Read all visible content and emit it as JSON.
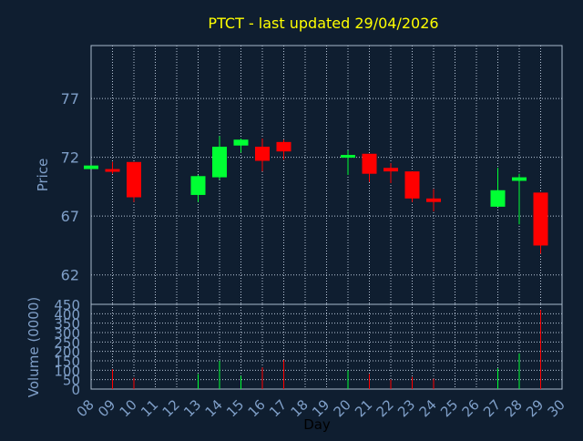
{
  "chart_data": {
    "type": "candlestick",
    "title": "PTCT - last updated 29/04/2026",
    "xlabel": "Day",
    "price_ylabel": "Price",
    "volume_ylabel": "Volume (0000)",
    "x_ticks": [
      "08",
      "09",
      "10",
      "11",
      "12",
      "13",
      "14",
      "15",
      "16",
      "17",
      "18",
      "19",
      "20",
      "21",
      "22",
      "23",
      "24",
      "25",
      "26",
      "27",
      "28",
      "29",
      "30"
    ],
    "price_ticks": [
      62,
      67,
      72,
      77
    ],
    "price_range": [
      59.5,
      81.5
    ],
    "volume_ticks": [
      0,
      50,
      100,
      150,
      200,
      250,
      300,
      350,
      400,
      450
    ],
    "volume_range": [
      0,
      450
    ],
    "grid": true,
    "colors": {
      "background": "#0f1e30",
      "title": "#ffff00",
      "axis_text": "#7f9fc8",
      "frame": "#aabbcc",
      "grid": "#b8c6d8",
      "up": "#00ff33",
      "down": "#ff0000"
    },
    "candles": [
      {
        "day": 8,
        "open": 71.0,
        "high": 71.3,
        "low": 71.0,
        "close": 71.3
      },
      {
        "day": 9,
        "open": 71.0,
        "high": 71.6,
        "low": 70.6,
        "close": 70.8
      },
      {
        "day": 10,
        "open": 71.6,
        "high": 71.6,
        "low": 68.2,
        "close": 68.6
      },
      {
        "day": 13,
        "open": 68.8,
        "high": 70.5,
        "low": 68.2,
        "close": 70.4
      },
      {
        "day": 14,
        "open": 70.3,
        "high": 73.8,
        "low": 70.1,
        "close": 72.9
      },
      {
        "day": 15,
        "open": 73.0,
        "high": 73.6,
        "low": 72.4,
        "close": 73.5
      },
      {
        "day": 16,
        "open": 72.9,
        "high": 73.6,
        "low": 70.8,
        "close": 71.7
      },
      {
        "day": 17,
        "open": 73.3,
        "high": 73.5,
        "low": 71.8,
        "close": 72.5
      },
      {
        "day": 20,
        "open": 72.0,
        "high": 72.6,
        "low": 70.5,
        "close": 72.2
      },
      {
        "day": 21,
        "open": 72.3,
        "high": 72.3,
        "low": 69.9,
        "close": 70.6
      },
      {
        "day": 22,
        "open": 71.1,
        "high": 71.5,
        "low": 69.8,
        "close": 70.8
      },
      {
        "day": 23,
        "open": 70.8,
        "high": 70.8,
        "low": 68.2,
        "close": 68.5
      },
      {
        "day": 24,
        "open": 68.5,
        "high": 69.3,
        "low": 67.4,
        "close": 68.2
      },
      {
        "day": 27,
        "open": 67.8,
        "high": 71.1,
        "low": 67.8,
        "close": 69.2
      },
      {
        "day": 28,
        "open": 70.0,
        "high": 70.6,
        "low": 66.3,
        "close": 70.3
      },
      {
        "day": 29,
        "open": 69.0,
        "high": 69.0,
        "low": 63.8,
        "close": 64.5
      }
    ],
    "volume": [
      {
        "day": 9,
        "value": 105,
        "dir": "down"
      },
      {
        "day": 10,
        "value": 60,
        "dir": "down"
      },
      {
        "day": 13,
        "value": 80,
        "dir": "up"
      },
      {
        "day": 14,
        "value": 150,
        "dir": "up"
      },
      {
        "day": 15,
        "value": 70,
        "dir": "up"
      },
      {
        "day": 16,
        "value": 115,
        "dir": "down"
      },
      {
        "day": 17,
        "value": 155,
        "dir": "down"
      },
      {
        "day": 20,
        "value": 100,
        "dir": "up"
      },
      {
        "day": 21,
        "value": 80,
        "dir": "down"
      },
      {
        "day": 22,
        "value": 50,
        "dir": "down"
      },
      {
        "day": 23,
        "value": 65,
        "dir": "down"
      },
      {
        "day": 24,
        "value": 55,
        "dir": "down"
      },
      {
        "day": 27,
        "value": 110,
        "dir": "up"
      },
      {
        "day": 28,
        "value": 190,
        "dir": "up"
      },
      {
        "day": 29,
        "value": 420,
        "dir": "down"
      }
    ]
  }
}
